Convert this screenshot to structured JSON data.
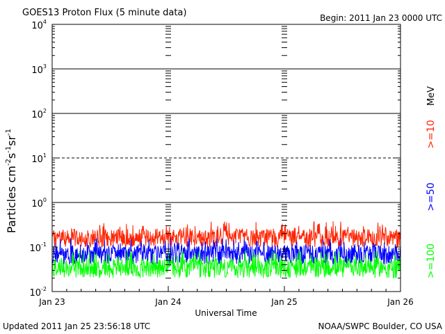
{
  "chart_data": {
    "type": "line",
    "title": "GOES13 Proton Flux (5 minute data)",
    "begin_label": "Begin: 2011 Jan 23 0000 UTC",
    "xlabel": "Universal Time",
    "ylabel": "Particles cm⁻²s⁻¹sr⁻¹",
    "ylabel_parts": {
      "base": "Particles cm",
      "sup1": "-2",
      "mid1": "s",
      "sup2": "-1",
      "mid2": "sr",
      "sup3": "-1"
    },
    "yscale": "log",
    "ylim": [
      0.01,
      10000
    ],
    "y_ticks": [
      {
        "value": 0.01,
        "base": "10",
        "exp": "-2"
      },
      {
        "value": 0.1,
        "base": "10",
        "exp": "-1"
      },
      {
        "value": 1,
        "base": "10",
        "exp": "0"
      },
      {
        "value": 10,
        "base": "10",
        "exp": "1"
      },
      {
        "value": 100,
        "base": "10",
        "exp": "2"
      },
      {
        "value": 1000,
        "base": "10",
        "exp": "3"
      },
      {
        "value": 10000,
        "base": "10",
        "exp": "4"
      }
    ],
    "x_ticks": [
      "Jan 23",
      "Jan 24",
      "Jan 25",
      "Jan 26"
    ],
    "xlim_days": [
      0,
      3
    ],
    "reference_lines": [
      {
        "value": 1,
        "style": "solid"
      },
      {
        "value": 10,
        "style": "dashed"
      },
      {
        "value": 100,
        "style": "solid"
      },
      {
        "value": 1000,
        "style": "solid"
      }
    ],
    "legend_placement": "right",
    "energy_unit": "MeV",
    "series": [
      {
        "name": ">=10",
        "color": "#ff2200",
        "typical": 0.17,
        "min": 0.1,
        "max": 0.38
      },
      {
        "name": ">=50",
        "color": "#0000ff",
        "typical": 0.075,
        "min": 0.04,
        "max": 0.16
      },
      {
        "name": ">=100",
        "color": "#00ff00",
        "typical": 0.035,
        "min": 0.02,
        "max": 0.085
      }
    ],
    "samples_per_series": 864
  },
  "footer": {
    "updated": "Updated 2011 Jan 25 23:56:18 UTC",
    "credit": "NOAA/SWPC Boulder, CO USA"
  }
}
